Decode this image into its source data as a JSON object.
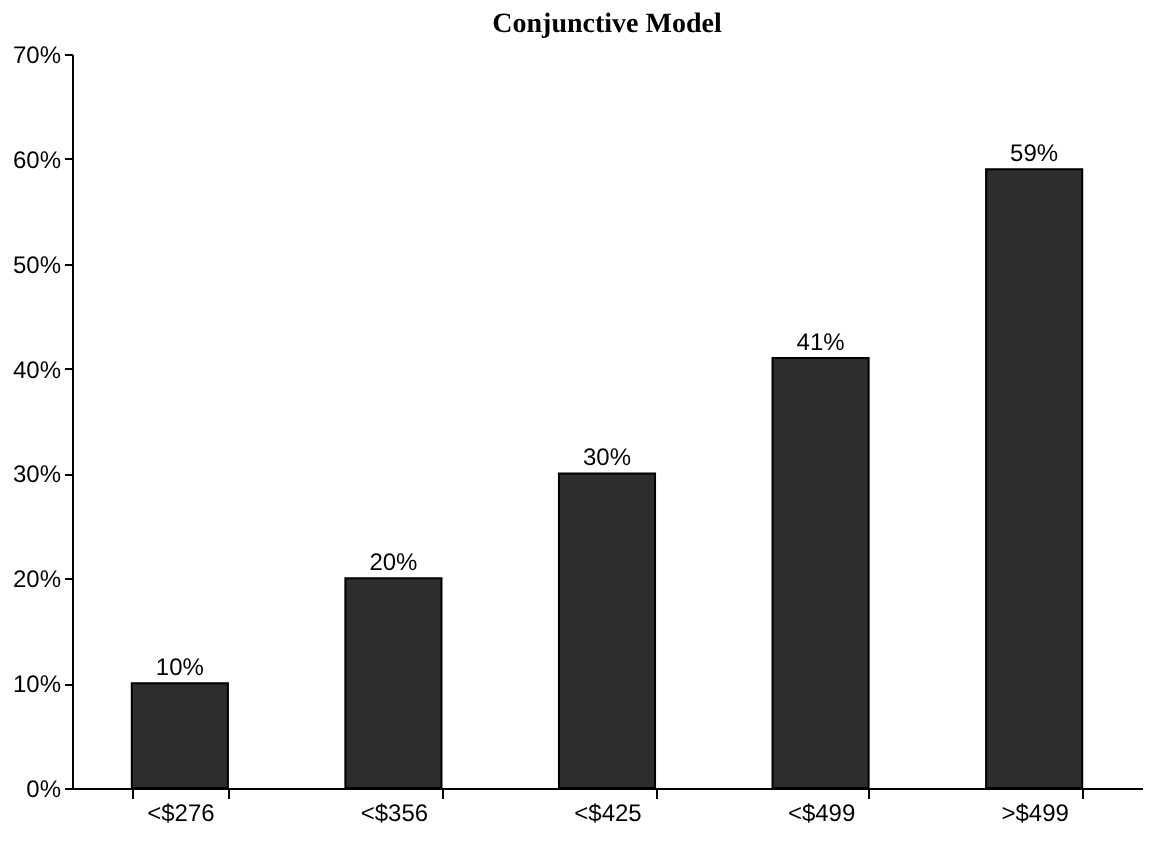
{
  "chart_data": {
    "type": "bar",
    "title": "Conjunctive Model",
    "categories": [
      "<$276",
      "<$356",
      "<$425",
      "<$499",
      ">$499"
    ],
    "values": [
      10,
      20,
      30,
      41,
      59
    ],
    "value_labels": [
      "10%",
      "20%",
      "30%",
      "41%",
      "59%"
    ],
    "color": "#2d2d2d",
    "ylim": [
      0,
      70
    ],
    "yticks": [
      {
        "value": 0,
        "label": "0%"
      },
      {
        "value": 10,
        "label": "10%"
      },
      {
        "value": 20,
        "label": "20%"
      },
      {
        "value": 30,
        "label": "30%"
      },
      {
        "value": 40,
        "label": "40%"
      },
      {
        "value": 50,
        "label": "50%"
      },
      {
        "value": 60,
        "label": "60%"
      },
      {
        "value": 70,
        "label": "70%"
      }
    ],
    "grid": false
  }
}
